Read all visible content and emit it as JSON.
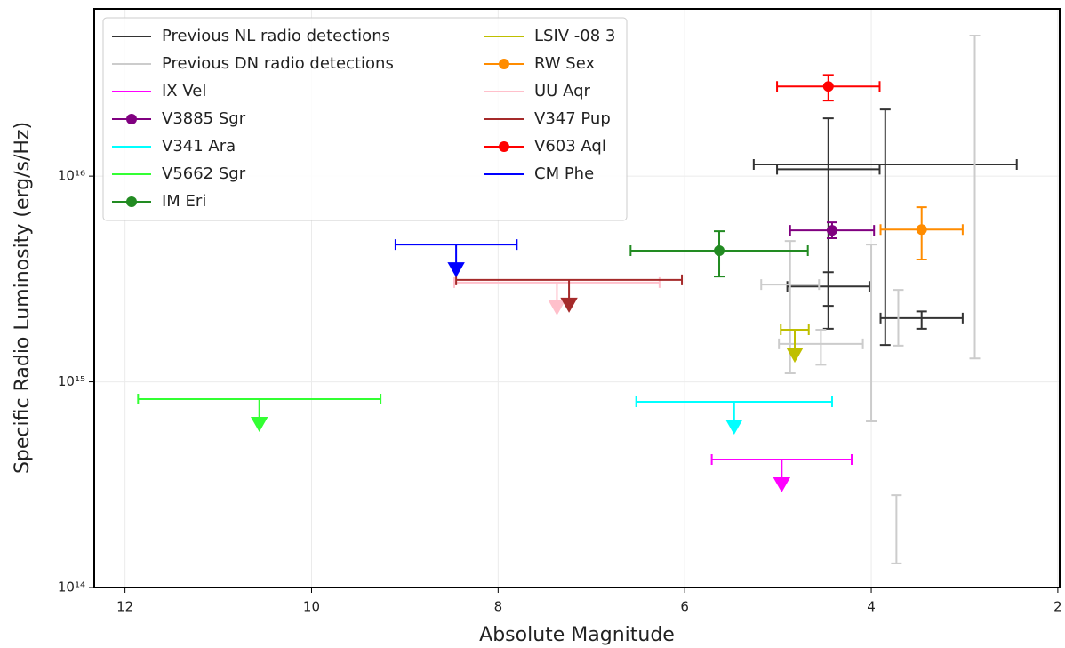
{
  "chart_data": {
    "type": "errorbar",
    "xlabel": "Absolute Magnitude",
    "ylabel": "Specific Radio Luminosity (erg/s/Hz)",
    "xlim": [
      12.33,
      1.98
    ],
    "xticks": [
      12,
      10,
      8,
      6,
      4,
      2
    ],
    "ylim": [
      100000000000000.0,
      6.5e+16
    ],
    "ylog": true,
    "yticks": [
      {
        "value": 100000000000000.0,
        "label": "10¹⁴"
      },
      {
        "value": 1000000000000000.0,
        "label": "10¹⁵"
      },
      {
        "value": 1e+16,
        "label": "10¹⁶"
      }
    ],
    "grid": true,
    "legend": "upper left",
    "series": [
      {
        "name": "Previous NL radio detections",
        "color": "#333333",
        "kind": "errorbar",
        "marker": false,
        "x": [
          3.85,
          4.46,
          4.46,
          3.46
        ],
        "y": [
          1.14e+16,
          1.08e+16,
          2910000000000000.0,
          2040000000000000.0
        ],
        "xerr": [
          1.41,
          0.55,
          0.44,
          0.44
        ],
        "ylo": [
          1510000000000000.0,
          1810000000000000.0,
          2340000000000000.0,
          1810000000000000.0
        ],
        "yhi": [
          2.11e+16,
          1.91e+16,
          3410000000000000.0,
          2200000000000000.0
        ]
      },
      {
        "name": "Previous DN radio detections",
        "color": "#cccccc",
        "kind": "errorbar",
        "marker": false,
        "x": [
          2.89,
          4.87,
          4.0,
          3.71,
          4.54,
          3.73
        ],
        "y": [
          7950000000000000.0,
          2970000000000000.0,
          1730000000000000.0,
          2060000000000000.0,
          1530000000000000.0,
          193000000000000.0
        ],
        "xerr": [
          null,
          0.31,
          null,
          null,
          0.45,
          null
        ],
        "ylo": [
          1300000000000000.0,
          1100000000000000.0,
          643000000000000.0,
          1500000000000000.0,
          1210000000000000.0,
          131000000000000.0
        ],
        "yhi": [
          4.82e+16,
          4840000000000000.0,
          4650000000000000.0,
          2800000000000000.0,
          1790000000000000.0,
          281000000000000.0
        ]
      },
      {
        "name": "IX Vel",
        "color": "#ff00ff",
        "kind": "upper_limit",
        "marker": false,
        "x": [
          4.96
        ],
        "y": [
          419000000000000.0
        ],
        "xerr": [
          0.75
        ]
      },
      {
        "name": "V3885 Sgr",
        "color": "#800080",
        "kind": "errorbar",
        "marker": true,
        "x": [
          4.42
        ],
        "y": [
          5450000000000000.0
        ],
        "xerr": [
          0.45
        ],
        "ylo": [
          4990000000000000.0
        ],
        "yhi": [
          5960000000000000.0
        ]
      },
      {
        "name": "V341 Ara",
        "color": "#00ffff",
        "kind": "upper_limit",
        "marker": false,
        "x": [
          5.47
        ],
        "y": [
          800000000000000.0
        ],
        "xerr": [
          1.05
        ]
      },
      {
        "name": "V5662 Sgr",
        "color": "#33ff33",
        "kind": "upper_limit",
        "marker": false,
        "x": [
          10.56
        ],
        "y": [
          824000000000000.0
        ],
        "xerr": [
          1.3
        ]
      },
      {
        "name": "IM Eri",
        "color": "#228b22",
        "kind": "errorbar",
        "marker": true,
        "x": [
          5.63
        ],
        "y": [
          4340000000000000.0
        ],
        "xerr": [
          0.95
        ],
        "ylo": [
          3250000000000000.0
        ],
        "yhi": [
          5400000000000000.0
        ]
      },
      {
        "name": "LSIV -08 3",
        "color": "#bfbf00",
        "kind": "upper_limit",
        "marker": false,
        "x": [
          4.82
        ],
        "y": [
          1790000000000000.0
        ],
        "xerr": [
          0.15
        ]
      },
      {
        "name": "RW Sex",
        "color": "#ff8c00",
        "kind": "errorbar",
        "marker": true,
        "x": [
          3.46
        ],
        "y": [
          5500000000000000.0
        ],
        "xerr": [
          0.44
        ],
        "ylo": [
          3930000000000000.0
        ],
        "yhi": [
          7060000000000000.0
        ]
      },
      {
        "name": "UU Aqr",
        "color": "#ffc0cb",
        "kind": "upper_limit",
        "marker": false,
        "x": [
          7.37
        ],
        "y": [
          3040000000000000.0
        ],
        "xerr": [
          1.1
        ]
      },
      {
        "name": "V347 Pup",
        "color": "#a52a2a",
        "kind": "upper_limit",
        "marker": false,
        "x": [
          7.24
        ],
        "y": [
          3130000000000000.0
        ],
        "xerr": [
          1.21
        ]
      },
      {
        "name": "V603 Aql",
        "color": "#ff0000",
        "kind": "errorbar",
        "marker": true,
        "x": [
          4.46
        ],
        "y": [
          2.73e+16
        ],
        "xerr": [
          0.55
        ],
        "ylo": [
          2.33e+16
        ],
        "yhi": [
          3.1e+16
        ]
      },
      {
        "name": "CM Phe",
        "color": "#0000ff",
        "kind": "upper_limit",
        "marker": false,
        "x": [
          8.45
        ],
        "y": [
          4650000000000000.0
        ],
        "xerr": [
          0.65
        ]
      }
    ]
  }
}
